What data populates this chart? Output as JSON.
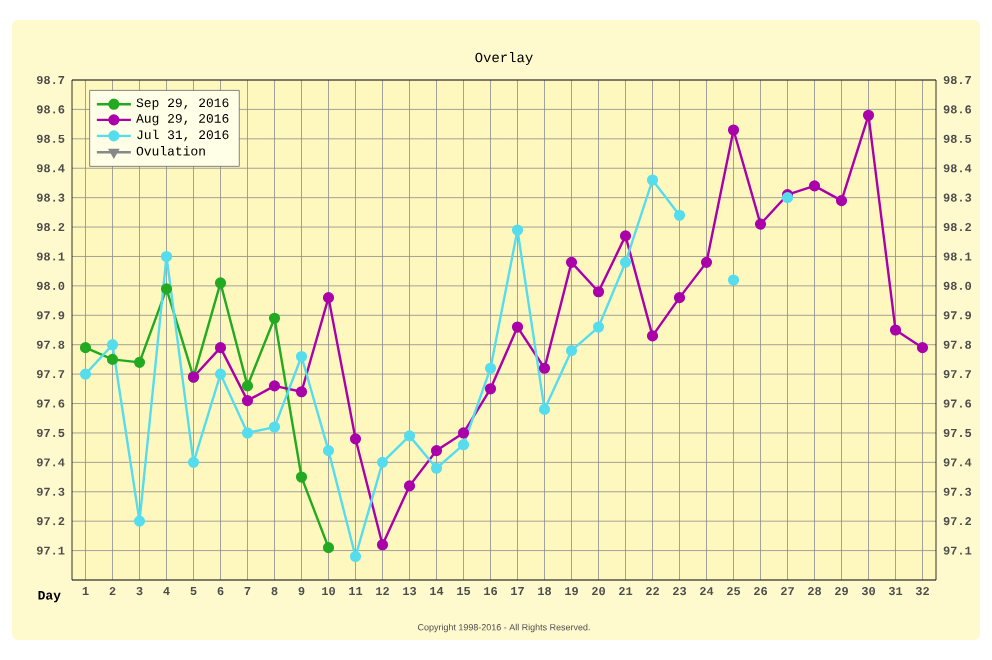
{
  "chart_data": {
    "type": "line",
    "title": "Overlay",
    "xlabel": "Day",
    "categories": [
      "1",
      "2",
      "3",
      "4",
      "5",
      "6",
      "7",
      "8",
      "9",
      "10",
      "11",
      "12",
      "13",
      "14",
      "15",
      "16",
      "17",
      "18",
      "19",
      "20",
      "21",
      "22",
      "23",
      "24",
      "25",
      "26",
      "27",
      "28",
      "29",
      "30",
      "31",
      "32"
    ],
    "ylim": [
      97.0,
      98.7
    ],
    "yticks": [
      {
        "value": 97.0,
        "label": null
      },
      97.1,
      97.2,
      97.3,
      97.4,
      97.5,
      97.6,
      97.7,
      97.8,
      97.9,
      {
        "value": 98.0,
        "label": "98.0"
      },
      98.1,
      98.2,
      98.3,
      98.4,
      98.5,
      98.6,
      98.7
    ],
    "y2lim": [
      97.0,
      98.7
    ],
    "y2ticks": [
      97.1,
      97.2,
      97.3,
      97.4,
      97.5,
      97.6,
      97.7,
      97.8,
      97.9,
      {
        "value": 98.0,
        "label": "98.0"
      },
      98.1,
      98.2,
      98.3,
      98.4,
      98.5,
      98.6,
      98.7
    ],
    "grid": true,
    "legend": "top left",
    "marker": "circle",
    "series": [
      {
        "name": "Sep 29, 2016",
        "color": "#22aa22",
        "values": [
          97.79,
          97.75,
          97.74,
          97.99,
          97.69,
          98.01,
          97.66,
          97.89,
          97.35,
          97.11,
          null,
          null,
          null,
          null,
          null,
          null,
          null,
          null,
          null,
          null,
          null,
          null,
          null,
          null,
          null,
          null,
          null,
          null,
          null,
          null,
          null,
          null
        ]
      },
      {
        "name": "Aug 29, 2016",
        "color": "#aa00aa",
        "values": [
          null,
          null,
          null,
          null,
          97.69,
          97.79,
          97.61,
          97.66,
          97.64,
          97.96,
          97.48,
          97.12,
          97.32,
          97.44,
          97.5,
          97.65,
          97.86,
          97.72,
          98.08,
          97.98,
          98.17,
          97.83,
          97.96,
          98.08,
          98.53,
          98.21,
          98.31,
          98.34,
          98.29,
          98.58,
          97.85,
          97.79
        ]
      },
      {
        "name": "Jul 31, 2016",
        "color": "#55ddee",
        "values": [
          97.7,
          97.8,
          97.2,
          98.1,
          97.4,
          97.7,
          97.5,
          97.52,
          97.76,
          97.44,
          97.08,
          97.4,
          97.49,
          97.38,
          97.46,
          97.72,
          98.19,
          97.58,
          97.78,
          97.86,
          98.08,
          98.36,
          98.24,
          null,
          98.02,
          null,
          98.3,
          null,
          null,
          null,
          null,
          null
        ]
      },
      {
        "name": "Ovulation",
        "color": "#888888",
        "marker": "triangle",
        "values": [
          null,
          null,
          null,
          null,
          null,
          null,
          null,
          null,
          null,
          null,
          null,
          null,
          null,
          null,
          null,
          null,
          null,
          null,
          null,
          null,
          null,
          null,
          null,
          null,
          null,
          null,
          null,
          null,
          null,
          null,
          null,
          null
        ]
      }
    ],
    "annotations": [
      "Copyright 1998-2016 - All Rights Reserved."
    ]
  }
}
